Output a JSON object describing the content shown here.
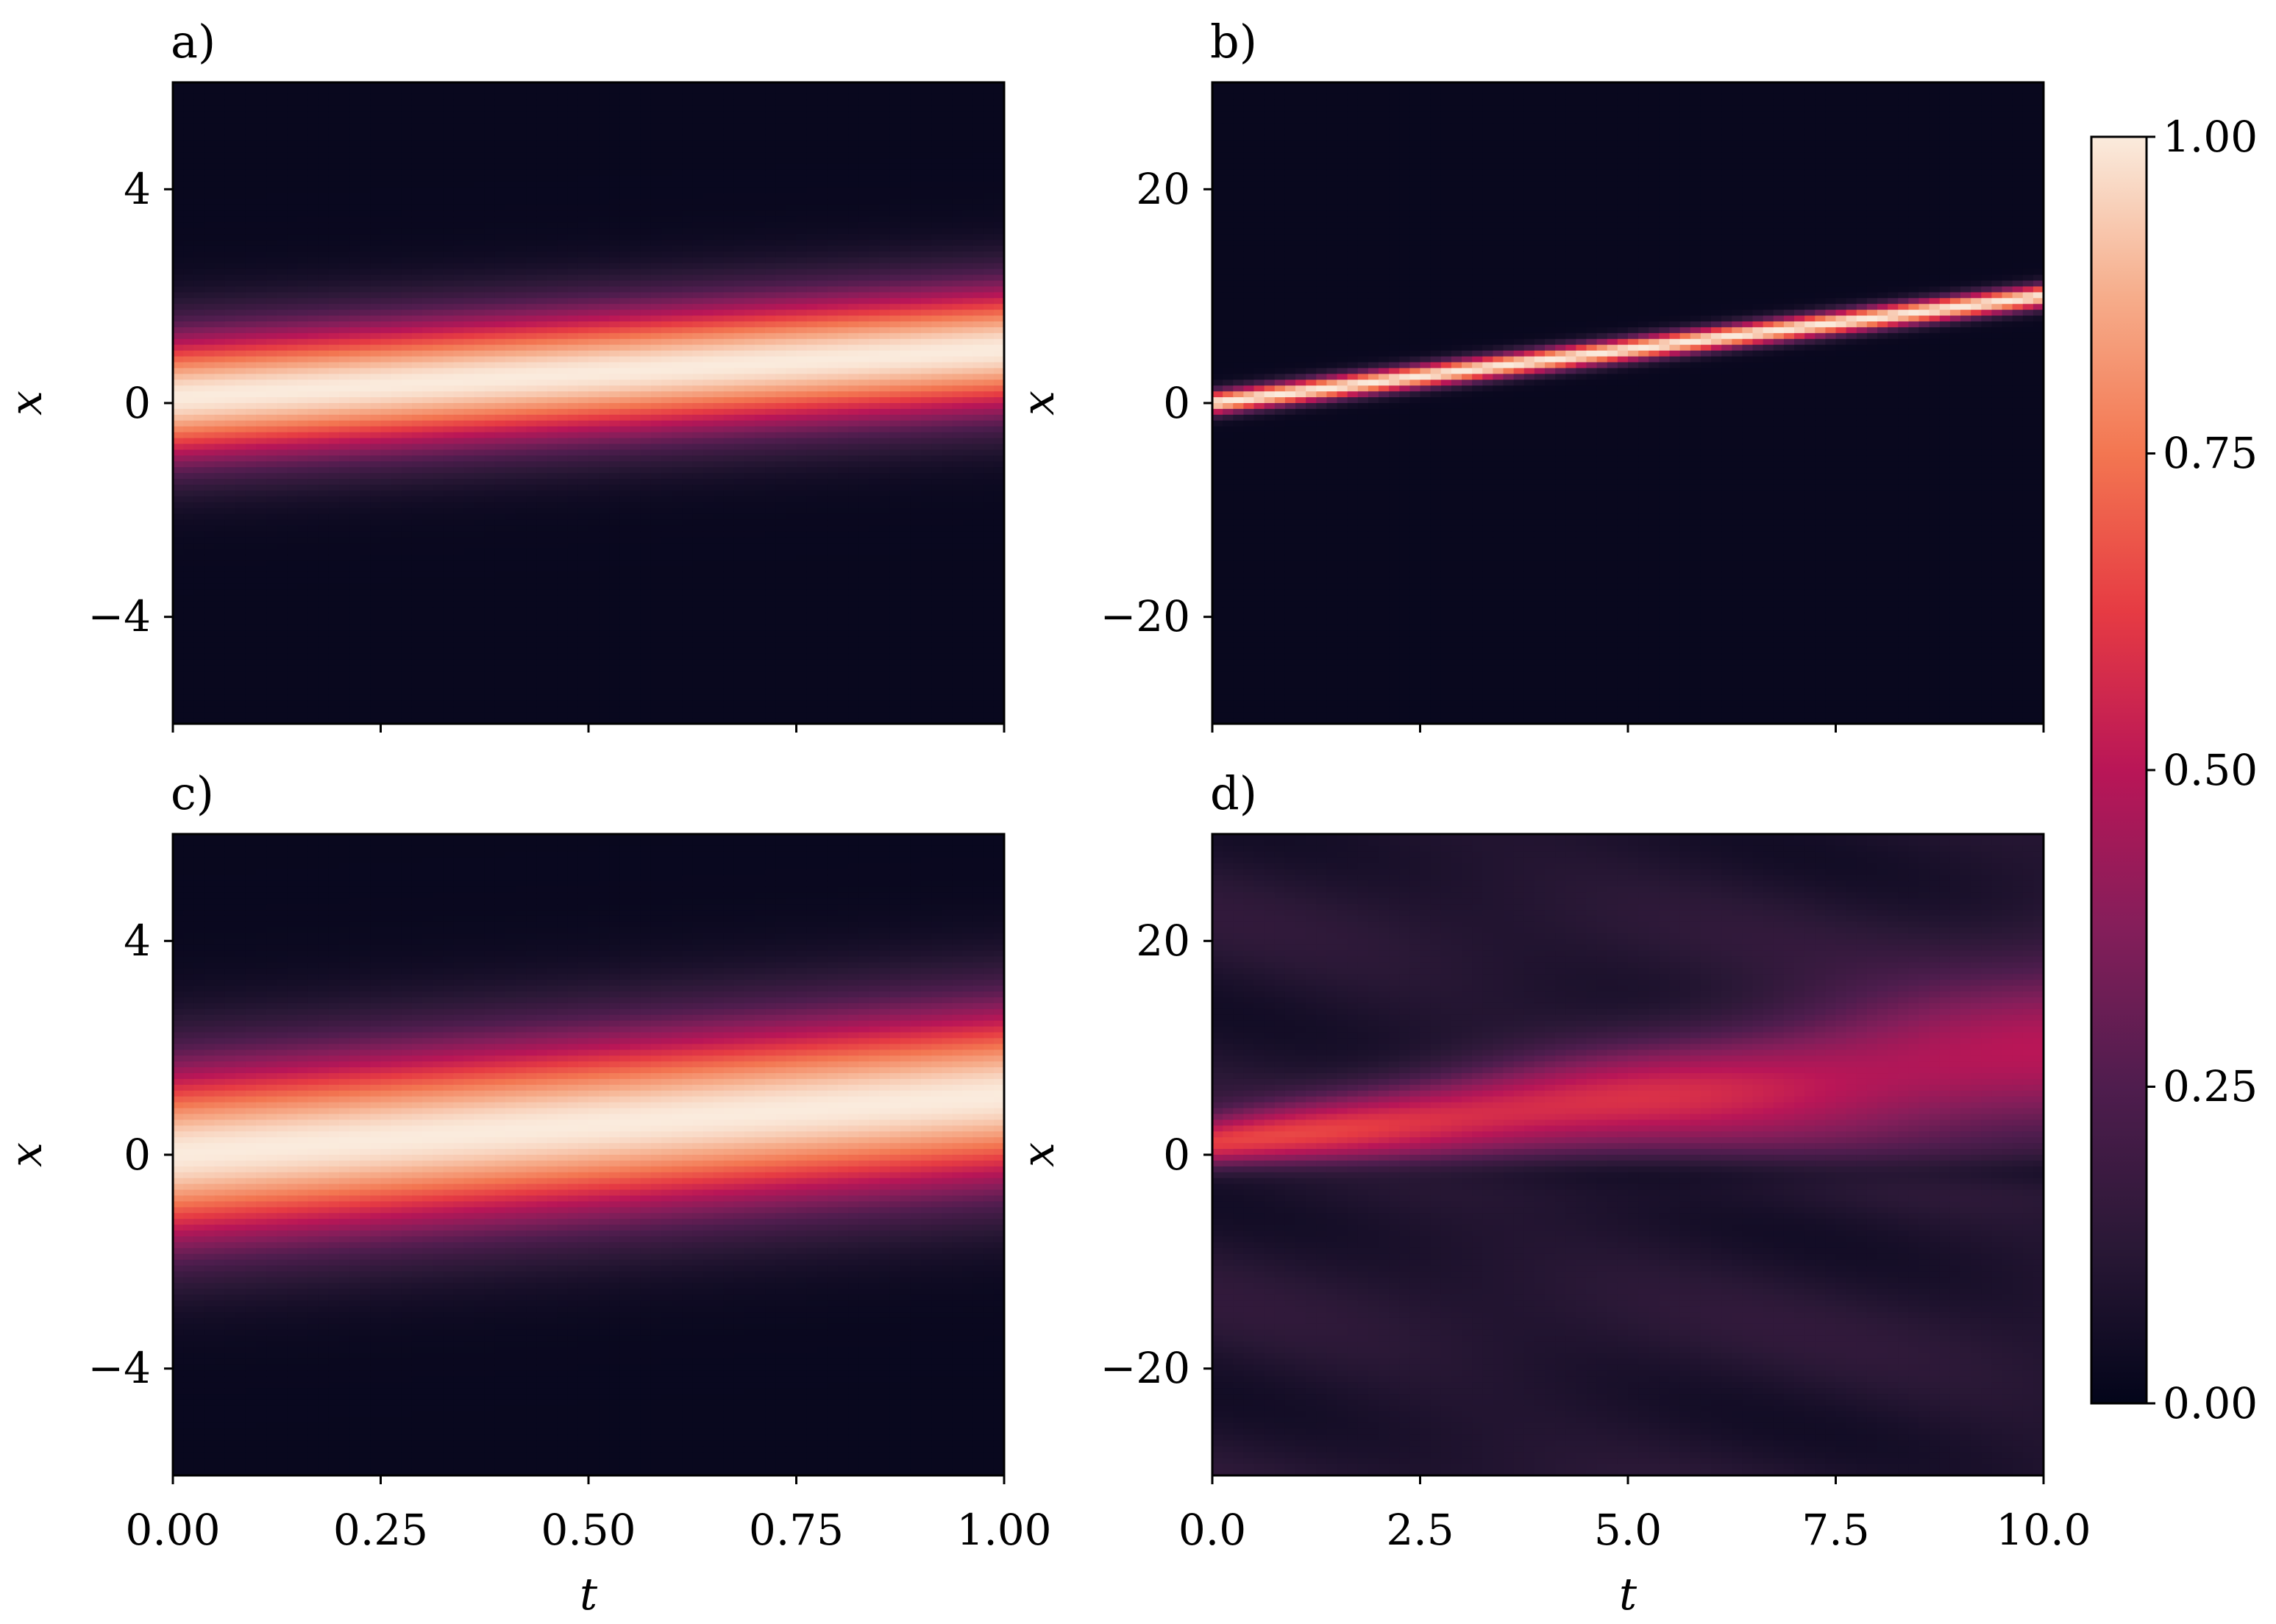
{
  "figure": {
    "colorbar": {
      "cmap": "rocket",
      "ticks": [
        "0.00",
        "0.25",
        "0.50",
        "0.75",
        "1.00"
      ],
      "range": [
        0,
        1
      ]
    }
  },
  "chart_data": [
    {
      "type": "heatmap",
      "panel_label": "a)",
      "title": "",
      "xlabel": "",
      "ylabel": "x",
      "xlim": [
        0,
        1
      ],
      "ylim": [
        -6,
        6
      ],
      "xticks": [
        0,
        0.25,
        0.5,
        0.75,
        1
      ],
      "xtick_labels": [],
      "yticks": [
        -4,
        0,
        4
      ],
      "ytick_labels": [
        "−4",
        "0",
        "4"
      ],
      "field": {
        "kind": "gaussian_ridge",
        "center_start": 0.1,
        "center_end": 1.0,
        "sigma": 0.85,
        "background": 0.02
      },
      "peak_value": 1.0
    },
    {
      "type": "heatmap",
      "panel_label": "b)",
      "title": "",
      "xlabel": "",
      "ylabel": "x",
      "xlim": [
        0,
        10
      ],
      "ylim": [
        -30,
        30
      ],
      "xticks": [
        0,
        2.5,
        5,
        7.5,
        10
      ],
      "xtick_labels": [],
      "yticks": [
        -20,
        0,
        20
      ],
      "ytick_labels": [
        "−20",
        "0",
        "20"
      ],
      "field": {
        "kind": "gaussian_ridge",
        "center_start": 0.0,
        "center_end": 10.0,
        "sigma": 0.75,
        "background": 0.02
      },
      "peak_value": 1.0
    },
    {
      "type": "heatmap",
      "panel_label": "c)",
      "title": "",
      "xlabel": "t",
      "ylabel": "x",
      "xlim": [
        0,
        1
      ],
      "ylim": [
        -6,
        6
      ],
      "xticks": [
        0,
        0.25,
        0.5,
        0.75,
        1
      ],
      "xtick_labels": [
        "0.00",
        "0.25",
        "0.50",
        "0.75",
        "1.00"
      ],
      "yticks": [
        -4,
        0,
        4
      ],
      "ytick_labels": [
        "−4",
        "0",
        "4"
      ],
      "field": {
        "kind": "gaussian_ridge",
        "center_start": 0.0,
        "center_end": 1.1,
        "sigma": 1.2,
        "background": 0.02
      },
      "peak_value": 1.0
    },
    {
      "type": "heatmap",
      "panel_label": "d)",
      "title": "",
      "xlabel": "t",
      "ylabel": "x",
      "xlim": [
        0,
        10
      ],
      "ylim": [
        -30,
        30
      ],
      "xticks": [
        0,
        2.5,
        5,
        7.5,
        10
      ],
      "xtick_labels": [
        "0.0",
        "2.5",
        "5.0",
        "7.5",
        "10.0"
      ],
      "yticks": [
        -20,
        0,
        20
      ],
      "ytick_labels": [
        "−20",
        "0",
        "20"
      ],
      "field": {
        "kind": "diffuse_ridge",
        "center_start": 1.0,
        "center_end": 9.5,
        "sigma_start": 1.8,
        "sigma_end": 5.5,
        "peak_start": 0.62,
        "peak_end": 0.5,
        "background": 0.1,
        "dark_band_x": -1.5
      },
      "peak_value": 0.62
    }
  ]
}
